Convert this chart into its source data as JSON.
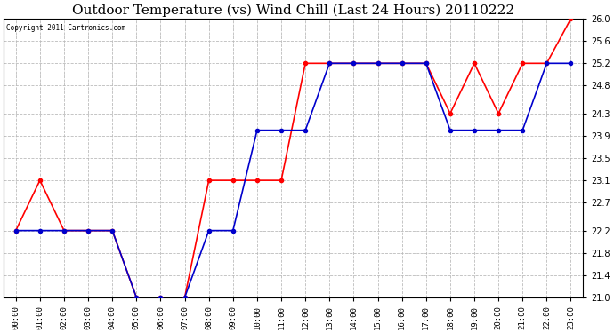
{
  "title": "Outdoor Temperature (vs) Wind Chill (Last 24 Hours) 20110222",
  "copyright": "Copyright 2011 Cartronics.com",
  "x_labels": [
    "00:00",
    "01:00",
    "02:00",
    "03:00",
    "04:00",
    "05:00",
    "06:00",
    "07:00",
    "08:00",
    "09:00",
    "10:00",
    "11:00",
    "12:00",
    "13:00",
    "14:00",
    "15:00",
    "16:00",
    "17:00",
    "18:00",
    "19:00",
    "20:00",
    "21:00",
    "22:00",
    "23:00"
  ],
  "temp_data": [
    22.2,
    23.1,
    22.2,
    22.2,
    22.2,
    21.0,
    21.0,
    21.0,
    23.1,
    23.1,
    23.1,
    23.1,
    25.2,
    25.2,
    25.2,
    25.2,
    25.2,
    25.2,
    24.3,
    25.2,
    24.3,
    25.2,
    25.2,
    26.0
  ],
  "wind_chill_data": [
    22.2,
    22.2,
    22.2,
    22.2,
    22.2,
    21.0,
    21.0,
    21.0,
    22.2,
    22.2,
    24.0,
    24.0,
    24.0,
    25.2,
    25.2,
    25.2,
    25.2,
    25.2,
    24.0,
    24.0,
    24.0,
    24.0,
    25.2,
    25.2
  ],
  "temp_color": "#ff0000",
  "wind_chill_color": "#0000cc",
  "bg_color": "#ffffff",
  "plot_bg_color": "#ffffff",
  "grid_color": "#bbbbbb",
  "ylim": [
    21.0,
    26.0
  ],
  "yticks": [
    21.0,
    21.4,
    21.8,
    22.2,
    22.7,
    23.1,
    23.5,
    23.9,
    24.3,
    24.8,
    25.2,
    25.6,
    26.0
  ],
  "title_fontsize": 11,
  "marker_size": 3,
  "line_width": 1.2
}
